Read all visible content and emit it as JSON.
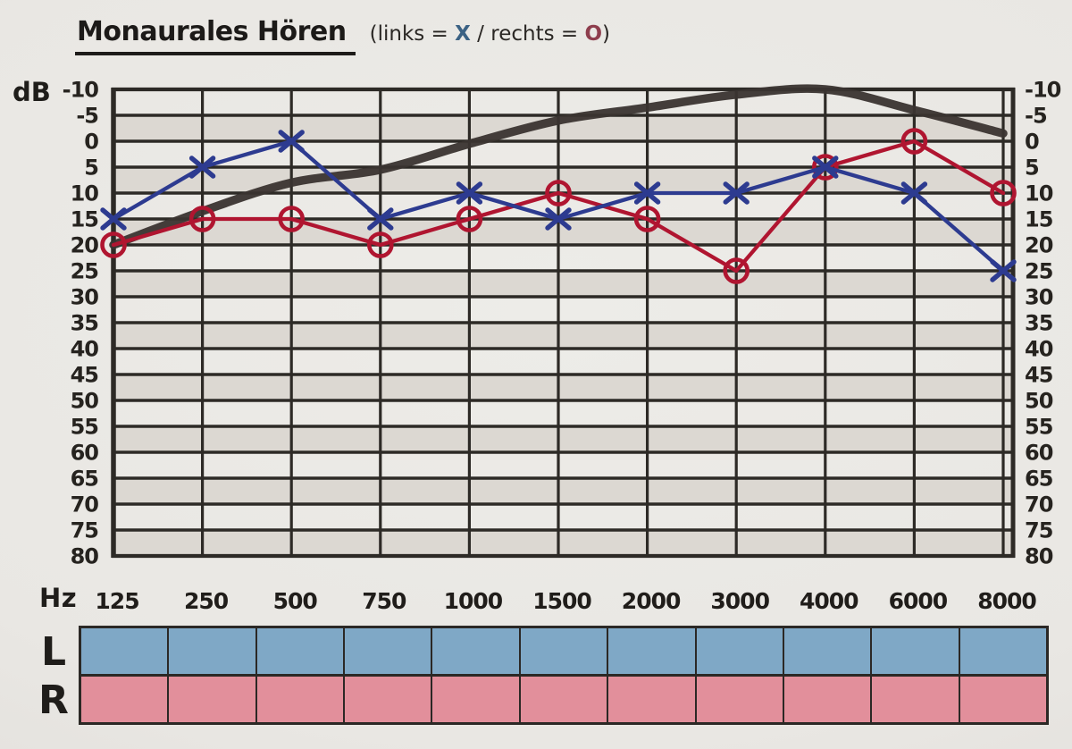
{
  "header": {
    "title": "Monaurales Hören",
    "legend": {
      "prefix": "(links = ",
      "x_symbol": "X",
      "middle": " / rechts = ",
      "o_symbol": "O",
      "suffix": ")"
    }
  },
  "chart_data": {
    "type": "line",
    "title": "Monaurales Hören",
    "subtitle": "(links = X / rechts = O)",
    "x_label": "Hz",
    "y_label": "dB",
    "categories": [
      125,
      250,
      500,
      750,
      1000,
      1500,
      2000,
      3000,
      4000,
      6000,
      8000
    ],
    "y_ticks": [
      -10,
      -5,
      0,
      5,
      10,
      15,
      20,
      25,
      30,
      35,
      40,
      45,
      50,
      55,
      60,
      65,
      70,
      75,
      80
    ],
    "y_axis_inverted": true,
    "grid": true,
    "alternating_row_shading": true,
    "legend_position": "top",
    "series": [
      {
        "name": "links (X)",
        "ear": "left",
        "marker": "x",
        "color": "#2d3b90",
        "values": [
          15,
          5,
          0,
          15,
          10,
          15,
          10,
          10,
          5,
          10,
          25
        ]
      },
      {
        "name": "rechts (O)",
        "ear": "right",
        "marker": "o",
        "color": "#b01530",
        "values": [
          20,
          15,
          15,
          20,
          15,
          10,
          15,
          25,
          5,
          0,
          10
        ]
      },
      {
        "name": "reference-curve",
        "marker": "none",
        "smooth": true,
        "color": "#3a3430",
        "values": [
          20,
          13.5,
          8,
          5.5,
          0.5,
          -4,
          -6.5,
          -9,
          -10,
          -6,
          -1.5
        ]
      }
    ],
    "colors": {
      "grid": "#2d2a26",
      "band": "#dcd8d2",
      "tick_text": "#26231f"
    }
  },
  "bottom_table": {
    "columns": 11,
    "rows": [
      {
        "label": "L",
        "fill": "#7fa8c6"
      },
      {
        "label": "R",
        "fill": "#e28f9b"
      }
    ]
  }
}
